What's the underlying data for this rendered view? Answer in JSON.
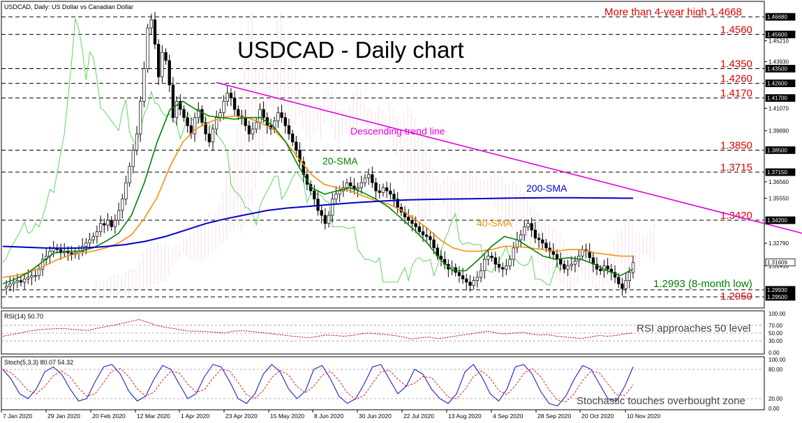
{
  "chart_data": {
    "type": "line",
    "symbol_header": "USDCAD, Daily:  US Dollar vs Canadian Dollar",
    "title": "USDCAD - Daily chart",
    "xlabels": [
      "7 Jan 2020",
      "29 Jan 2020",
      "20 Feb 2020",
      "12 Mar 2020",
      "1 Apr 2020",
      "23 Apr 2020",
      "15 May 2020",
      "8 Jun 2020",
      "30 Jun 2020",
      "22 Jul 2020",
      "13 Aug 2020",
      "4 Sep 2020",
      "28 Sep 2020",
      "20 Oct 2020",
      "10 Nov 2020"
    ],
    "price_axis": {
      "ylim": [
        1.289,
        1.472
      ],
      "ticks": [
        "1.45210",
        "1.43930",
        "1.41070",
        "1.39690",
        "1.36560",
        "1.35550",
        "1.32790",
        "1.31410"
      ],
      "level_tags": [
        "1.46680",
        "1.45600",
        "1.43500",
        "1.42600",
        "1.41700",
        "1.38500",
        "1.37150",
        "1.34200",
        "1.31609",
        "1.29930",
        "1.29500"
      ]
    },
    "levels": [
      {
        "value": 1.4668,
        "label": "More than 4-year high 1.4668"
      },
      {
        "value": 1.456,
        "label": "1.4560"
      },
      {
        "value": 1.435,
        "label": "1.4350"
      },
      {
        "value": 1.426,
        "label": "1.4260"
      },
      {
        "value": 1.417,
        "label": "1.4170"
      },
      {
        "value": 1.385,
        "label": "1.3850"
      },
      {
        "value": 1.3715,
        "label": "1.3715"
      },
      {
        "value": 1.342,
        "label": "1.3420"
      },
      {
        "value": 1.2993,
        "label": "1.2993 (8-month low)"
      },
      {
        "value": 1.295,
        "label": "1.2950"
      }
    ],
    "current_price": "1.31609",
    "annotations": {
      "trend": "Descending trend line",
      "sma20": "20-SMA",
      "sma40": "40-SMA",
      "sma200": "200-SMA",
      "rsi_note": "RSI approaches 50 level",
      "stoch_note": "Stochastic touches overbought zone"
    },
    "trend_line": {
      "from": [
        5,
        1.4265
      ],
      "to": [
        221,
        1.314
      ]
    },
    "price_series": {
      "name": "USDCAD close",
      "values": [
        1.3005,
        1.3015,
        1.303,
        1.304,
        1.305,
        1.304,
        1.306,
        1.307,
        1.308,
        1.308,
        1.312,
        1.318,
        1.32,
        1.323,
        1.325,
        1.324,
        1.322,
        1.323,
        1.322,
        1.321,
        1.322,
        1.323,
        1.326,
        1.328,
        1.33,
        1.332,
        1.335,
        1.34,
        1.339,
        1.342,
        1.338,
        1.342,
        1.348,
        1.355,
        1.365,
        1.375,
        1.385,
        1.395,
        1.415,
        1.435,
        1.46,
        1.465,
        1.45,
        1.43,
        1.445,
        1.44,
        1.425,
        1.405,
        1.415,
        1.41,
        1.405,
        1.4,
        1.395,
        1.405,
        1.41,
        1.402,
        1.395,
        1.39,
        1.398,
        1.405,
        1.408,
        1.415,
        1.42,
        1.417,
        1.41,
        1.406,
        1.405,
        1.4,
        1.395,
        1.398,
        1.402,
        1.41,
        1.405,
        1.4,
        1.398,
        1.403,
        1.408,
        1.405,
        1.4,
        1.395,
        1.39,
        1.385,
        1.378,
        1.37,
        1.364,
        1.36,
        1.355,
        1.348,
        1.345,
        1.34,
        1.345,
        1.355,
        1.358,
        1.36,
        1.362,
        1.365,
        1.363,
        1.361,
        1.362,
        1.365,
        1.368,
        1.37,
        1.365,
        1.36,
        1.359,
        1.362,
        1.36,
        1.358,
        1.355,
        1.35,
        1.347,
        1.344,
        1.342,
        1.34,
        1.338,
        1.335,
        1.333,
        1.332,
        1.33,
        1.325,
        1.32,
        1.318,
        1.315,
        1.312,
        1.313,
        1.31,
        1.308,
        1.306,
        1.304,
        1.302,
        1.305,
        1.307,
        1.311,
        1.318,
        1.32,
        1.319,
        1.315,
        1.313,
        1.312,
        1.314,
        1.318,
        1.325,
        1.33,
        1.333,
        1.338,
        1.34,
        1.336,
        1.331,
        1.33,
        1.328,
        1.325,
        1.323,
        1.321,
        1.318,
        1.315,
        1.312,
        1.314,
        1.315,
        1.317,
        1.32,
        1.324,
        1.323,
        1.319,
        1.315,
        1.312,
        1.311,
        1.314,
        1.312,
        1.31,
        1.307,
        1.303,
        1.3,
        1.305,
        1.31,
        1.316
      ]
    },
    "sma20_values": [
      1.303,
      1.306,
      1.31,
      1.316,
      1.322,
      1.323,
      1.323,
      1.325,
      1.329,
      1.334,
      1.345,
      1.365,
      1.39,
      1.41,
      1.415,
      1.41,
      1.406,
      1.405,
      1.404,
      1.405,
      1.405,
      1.4,
      1.39,
      1.375,
      1.362,
      1.358,
      1.36,
      1.362,
      1.359,
      1.355,
      1.35,
      1.343,
      1.336,
      1.328,
      1.318,
      1.311,
      1.311,
      1.318,
      1.326,
      1.332,
      1.33,
      1.325,
      1.32,
      1.318,
      1.319,
      1.318,
      1.315,
      1.311,
      1.308,
      1.312
    ],
    "sma40_values": [
      1.307,
      1.308,
      1.31,
      1.313,
      1.317,
      1.32,
      1.322,
      1.323,
      1.325,
      1.328,
      1.333,
      1.343,
      1.356,
      1.375,
      1.39,
      1.398,
      1.402,
      1.405,
      1.406,
      1.405,
      1.402,
      1.398,
      1.39,
      1.38,
      1.37,
      1.364,
      1.362,
      1.36,
      1.357,
      1.354,
      1.352,
      1.348,
      1.343,
      1.337,
      1.33,
      1.325,
      1.323,
      1.323,
      1.324,
      1.326,
      1.326,
      1.325,
      1.324,
      1.323,
      1.324,
      1.324,
      1.322,
      1.321,
      1.32,
      1.32
    ],
    "sma200_values": [
      1.326,
      1.3255,
      1.325,
      1.3248,
      1.325,
      1.3258,
      1.327,
      1.329,
      1.332,
      1.336,
      1.34,
      1.343,
      1.3455,
      1.348,
      1.3495,
      1.3505,
      1.3515,
      1.3525,
      1.3533,
      1.354,
      1.3545,
      1.3548,
      1.355,
      1.3552,
      1.3554,
      1.3556,
      1.3557,
      1.3558,
      1.3558,
      1.3557,
      1.3556,
      1.3555
    ],
    "ichimoku": {
      "note": "Ichimoku cloud and chikou span shown"
    },
    "rsi": {
      "label": "RSI(14) 50.70",
      "ylim": [
        0,
        100
      ],
      "ticks": [
        "100.00",
        "70.00",
        "50.00",
        "30.00",
        "0.00"
      ],
      "values": [
        42,
        46,
        50,
        55,
        58,
        60,
        61,
        62,
        60,
        58,
        57,
        62,
        66,
        70,
        75,
        80,
        85,
        78,
        70,
        65,
        62,
        58,
        55,
        55,
        54,
        52,
        50,
        55,
        56,
        55,
        52,
        50,
        47,
        45,
        42,
        40,
        38,
        42,
        45,
        44,
        42,
        44,
        48,
        50,
        48,
        46,
        44,
        40,
        35,
        38,
        40,
        36,
        38,
        42,
        45,
        48,
        52,
        55,
        50,
        48,
        50,
        52,
        48,
        45,
        46,
        42,
        40,
        38,
        36,
        40,
        44,
        42,
        44,
        48,
        50
      ]
    },
    "stochastic": {
      "label": "Stoch(5,3,3) 80.07 54.32",
      "ylim": [
        0,
        100
      ],
      "ticks": [
        "100.00",
        "80.00",
        "20.00",
        "0.00"
      ],
      "values": [
        80,
        60,
        30,
        20,
        40,
        75,
        85,
        70,
        40,
        15,
        20,
        55,
        85,
        90,
        70,
        35,
        15,
        25,
        60,
        88,
        80,
        50,
        20,
        30,
        65,
        90,
        85,
        55,
        20,
        10,
        30,
        70,
        90,
        75,
        40,
        20,
        35,
        80,
        88,
        60,
        25,
        10,
        20,
        50,
        85,
        90,
        60,
        30,
        45,
        80,
        70,
        40,
        20,
        10,
        30,
        75,
        90,
        65,
        30,
        15,
        40,
        85,
        90,
        70,
        35,
        10,
        5,
        25,
        60,
        88,
        80,
        50,
        20,
        15,
        45,
        85
      ]
    }
  },
  "colors": {
    "price": "#000000",
    "sma20": "#008000",
    "sma40": "#f0900a",
    "sma200": "#0000c8",
    "trend": "#e000e0",
    "levels_text": "#e00000",
    "low_text": "#008000",
    "cloud": "#e8a0c0",
    "chikou": "#5cd65c"
  }
}
